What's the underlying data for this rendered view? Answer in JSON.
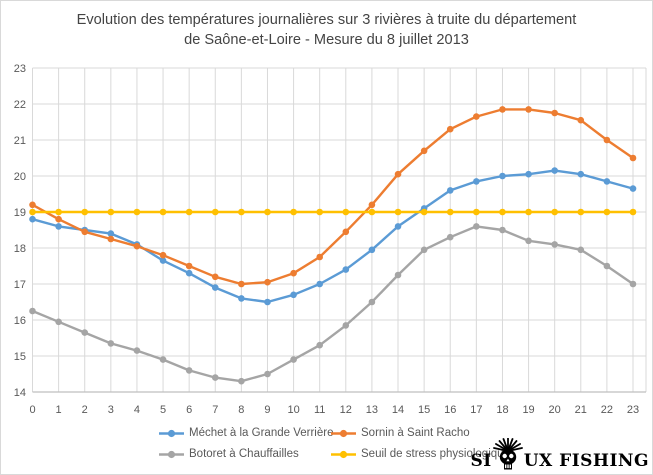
{
  "title": {
    "line1": "Evolution des températures journalières sur 3 rivières à truite du département",
    "line2": "de Saône-et-Loire - Mesure du 8 juillet 2013"
  },
  "chart_data": {
    "type": "line",
    "title": "Evolution des températures journalières sur 3 rivières à truite du département de Saône-et-Loire - Mesure du 8 juillet 2013",
    "x": [
      0,
      1,
      2,
      3,
      4,
      5,
      6,
      7,
      8,
      9,
      10,
      11,
      12,
      13,
      14,
      15,
      16,
      17,
      18,
      19,
      20,
      21,
      22,
      23
    ],
    "xlabel": "",
    "ylabel": "",
    "ylim": [
      14,
      23
    ],
    "ytick_step": 1,
    "grid": true,
    "legend_position": "bottom",
    "series": [
      {
        "name": "Méchet à la Grande Verrière",
        "color": "#5B9BD5",
        "marker": "circle",
        "values": [
          18.8,
          18.6,
          18.5,
          18.4,
          18.1,
          17.65,
          17.3,
          16.9,
          16.6,
          16.5,
          16.7,
          17.0,
          17.4,
          17.95,
          18.6,
          19.1,
          19.6,
          19.85,
          20.0,
          20.05,
          20.15,
          20.05,
          19.85,
          19.65
        ]
      },
      {
        "name": "Sornin à Saint Racho",
        "color": "#ED7D31",
        "marker": "circle",
        "values": [
          19.2,
          18.8,
          18.45,
          18.25,
          18.05,
          17.8,
          17.5,
          17.2,
          17.0,
          17.05,
          17.3,
          17.75,
          18.45,
          19.2,
          20.05,
          20.7,
          21.3,
          21.65,
          21.85,
          21.85,
          21.75,
          21.55,
          21.0,
          20.5
        ]
      },
      {
        "name": "Botoret à Chauffailles",
        "color": "#A5A5A5",
        "marker": "circle",
        "values": [
          16.25,
          15.95,
          15.65,
          15.35,
          15.15,
          14.9,
          14.6,
          14.4,
          14.3,
          14.5,
          14.9,
          15.3,
          15.85,
          16.5,
          17.25,
          17.95,
          18.3,
          18.6,
          18.5,
          18.2,
          18.1,
          17.95,
          17.5,
          17.0
        ]
      },
      {
        "name": "Seuil de stress physiologique",
        "color": "#FFC000",
        "marker": "circle",
        "values": [
          19,
          19,
          19,
          19,
          19,
          19,
          19,
          19,
          19,
          19,
          19,
          19,
          19,
          19,
          19,
          19,
          19,
          19,
          19,
          19,
          19,
          19,
          19,
          19
        ]
      }
    ],
    "colors": {
      "grid": "#d9d9d9",
      "axis": "#bfbfbf",
      "tick_label": "#595959"
    }
  },
  "logo": {
    "text_left": "SI",
    "text_right": "UX FISHING",
    "icon": "skull-with-spiked-headdress"
  }
}
